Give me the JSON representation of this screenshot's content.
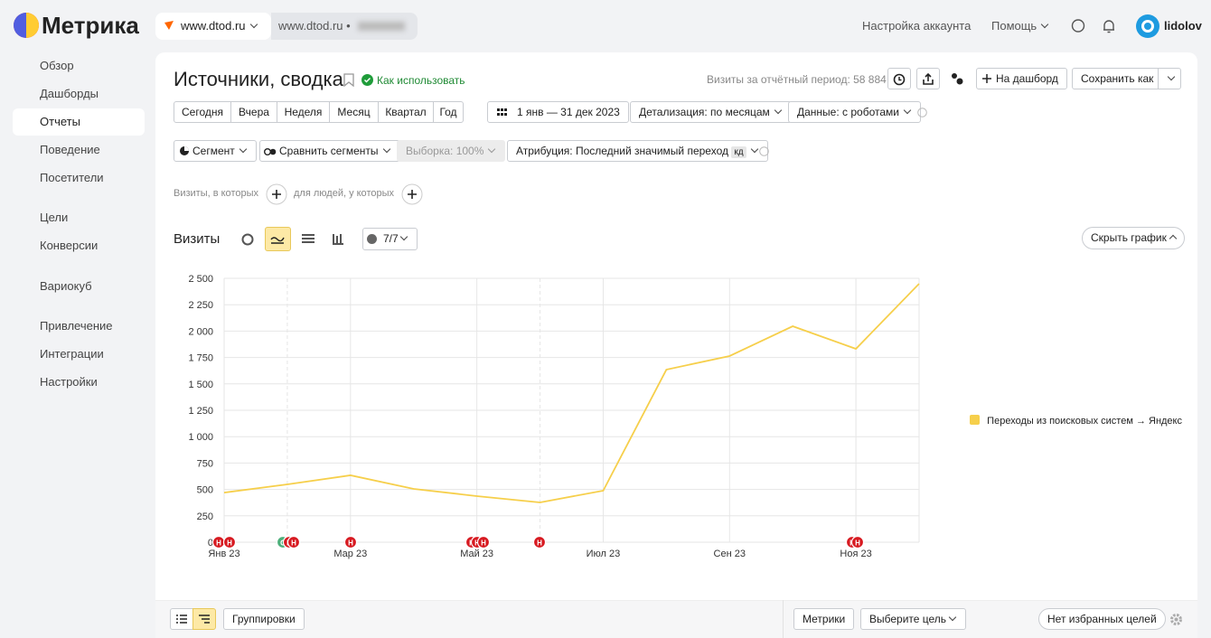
{
  "header": {
    "logo": "Метрика",
    "site": "www.dtod.ru",
    "site2": "www.dtod.ru •",
    "account_settings": "Настройка аккаунта",
    "help": "Помощь",
    "user": "lidolov"
  },
  "sidebar": {
    "items": [
      "Обзор",
      "Дашборды",
      "Отчеты",
      "Поведение",
      "Посетители",
      "Цели",
      "Конверсии",
      "Вариокуб",
      "Привлечение",
      "Интеграции",
      "Настройки"
    ]
  },
  "report": {
    "title": "Источники, сводка",
    "how_to": "Как использовать",
    "visits_total": "Визиты за отчётный период: 58 884",
    "to_dashboard": "На дашборд",
    "save_as": "Сохранить как",
    "periods": [
      "Сегодня",
      "Вчера",
      "Неделя",
      "Месяц",
      "Квартал",
      "Год"
    ],
    "date_range": "1 янв — 31 дек 2023",
    "detail": "Детализация: по месяцам",
    "data_mode": "Данные: с роботами",
    "segment": "Сегмент",
    "compare": "Сравнить сегменты",
    "sample": "Выборка: 100%",
    "attribution": "Атрибуция: Последний значимый переход",
    "attribution_badge": "кд",
    "filter_visits": "Визиты, в которых",
    "filter_people": "для людей, у которых",
    "chart_heading": "Визиты",
    "series_count": "7/7",
    "hide_chart": "Скрыть график"
  },
  "chart_data": {
    "type": "line",
    "categories": [
      "Янв 23",
      null,
      "Мар 23",
      null,
      "Май 23",
      null,
      "Июл 23",
      null,
      "Сен 23",
      null,
      "Ноя 23",
      null
    ],
    "series": [
      {
        "name": "Переходы из поисковых систем → Яндекс",
        "color": "#f6cf4b",
        "values": [
          470,
          548,
          634,
          505,
          437,
          377,
          488,
          1635,
          1764,
          2046,
          1832,
          2449
        ]
      }
    ],
    "ylim": [
      0,
      2500
    ],
    "yticks": [
      0,
      250,
      500,
      750,
      {
        "value": 1000,
        "label": "1 000"
      },
      {
        "value": 1250,
        "label": "1 250"
      },
      {
        "value": 1500,
        "label": "1 500"
      },
      {
        "value": 1750,
        "label": "1 750"
      },
      {
        "value": 2000,
        "label": "2 000"
      },
      {
        "value": 2250,
        "label": "2 250"
      },
      {
        "value": 2500,
        "label": "2 500"
      }
    ],
    "grid": true,
    "legend": "right",
    "annotations": [
      "Н",
      "Н",
      "С",
      "Н",
      "Н",
      "Н",
      "Н",
      "Н",
      "Н",
      "Н",
      "Н",
      "Н"
    ]
  },
  "footer_bar": {
    "groupings": "Группировки",
    "metrics": "Метрики",
    "choose_goal": "Выберите цель",
    "no_favorites": "Нет избранных целей"
  }
}
